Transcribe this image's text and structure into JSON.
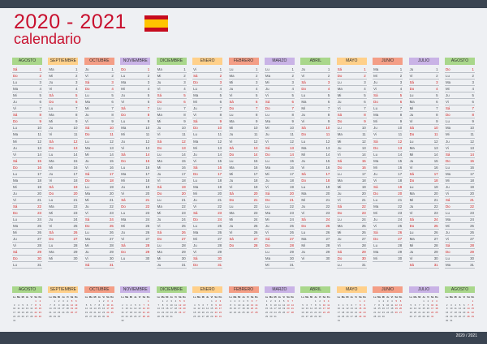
{
  "title": {
    "years": "2020 - 2021",
    "subtitle": "calendario"
  },
  "footer": {
    "text": "2020 / 2021"
  },
  "day_abbrs": [
    "Lu",
    "Ma",
    "Mi",
    "Ju",
    "Vi",
    "Sá",
    "Do"
  ],
  "mini_day_headers": [
    "Lu",
    "Ma",
    "Mi",
    "Ju",
    "Vi",
    "Sá",
    "Do"
  ],
  "months": [
    {
      "name": "AGOSTO",
      "color": "#a9d78b",
      "start": 5,
      "days": 31
    },
    {
      "name": "SEPTIEMBRE",
      "color": "#ffd08a",
      "start": 1,
      "days": 30
    },
    {
      "name": "OCTUBRE",
      "color": "#f49e86",
      "start": 3,
      "days": 31
    },
    {
      "name": "NOVIEMBRE",
      "color": "#c9b3e6",
      "start": 6,
      "days": 30
    },
    {
      "name": "DICIEMBRE",
      "color": "#a9d78b",
      "start": 1,
      "days": 31
    },
    {
      "name": "ENERO",
      "color": "#ffd08a",
      "start": 4,
      "days": 31
    },
    {
      "name": "FEBRERO",
      "color": "#f49e86",
      "start": 0,
      "days": 28
    },
    {
      "name": "MARZO",
      "color": "#c9b3e6",
      "start": 0,
      "days": 31
    },
    {
      "name": "ABRIL",
      "color": "#a9d78b",
      "start": 3,
      "days": 30
    },
    {
      "name": "MAYO",
      "color": "#ffd08a",
      "start": 5,
      "days": 31
    },
    {
      "name": "JUNIO",
      "color": "#f49e86",
      "start": 1,
      "days": 30
    },
    {
      "name": "JULIO",
      "color": "#c9b3e6",
      "start": 3,
      "days": 31
    },
    {
      "name": "AGOSTO",
      "color": "#a9d78b",
      "start": 6,
      "days": 31
    }
  ]
}
